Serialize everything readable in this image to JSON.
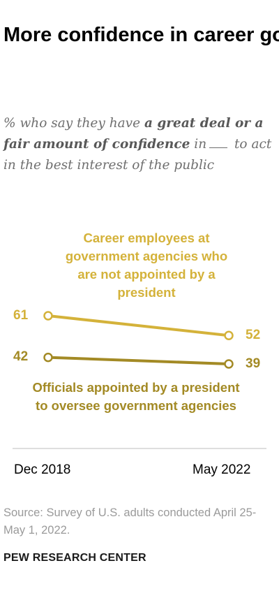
{
  "header": {
    "title": "More confidence in career govt. workers than in political appointees",
    "subtitle_pre": "% who say they have ",
    "subtitle_bold": "a great deal or a fair amount of confidence",
    "subtitle_mid": " in",
    "subtitle_post": " to act in the best interest of the public"
  },
  "chart_data": {
    "type": "line",
    "x": [
      "Dec 2018",
      "May 2022"
    ],
    "series": [
      {
        "name": "Career employees at government agencies who are not appointed by a president",
        "values": [
          61,
          52
        ],
        "color": "#d4b23a"
      },
      {
        "name": "Officials appointed by a president to oversee government agencies",
        "values": [
          42,
          39
        ],
        "color": "#a38a25"
      }
    ],
    "ylim": [
      39,
      61
    ],
    "grid": false,
    "legend": "direct labels"
  },
  "footer": {
    "source": "Source: Survey of U.S. adults conducted April 25-May 1, 2022.",
    "brand": "PEW RESEARCH CENTER"
  }
}
